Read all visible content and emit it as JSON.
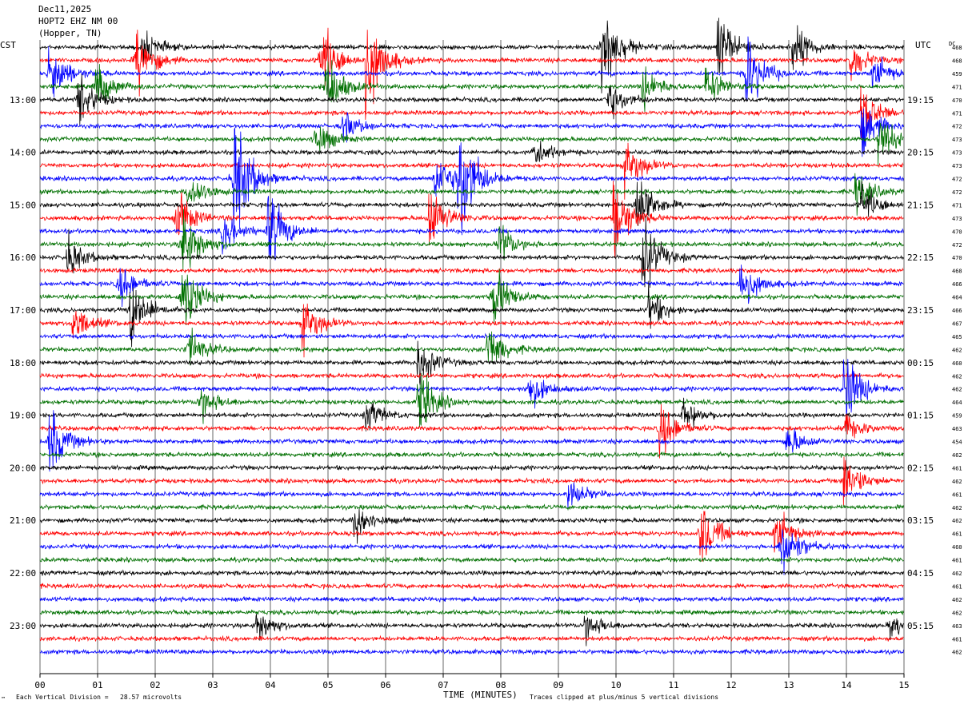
{
  "header": {
    "date": "Dec11,2025",
    "station": "HOPT2 EHZ NM 00",
    "location": "(Hopper, TN)"
  },
  "left_tz": "CST",
  "right_tz": "UTC",
  "dc_label": "DC",
  "footer": {
    "left_mark": "™",
    "scale": "Each Vertical Division =   28.57 microvolts",
    "xlabel": "TIME (MINUTES)",
    "clip_note": "Traces clipped at plus/minus 5 vertical divisions"
  },
  "colors": {
    "trace_cycle": [
      "#000000",
      "#ff0000",
      "#0000ff",
      "#007000"
    ],
    "gridline": "#000000",
    "background": "#ffffff"
  },
  "chart_data": {
    "type": "helicorder",
    "x_unit": "minutes",
    "xlim": [
      0,
      15
    ],
    "x_ticks": [
      "00",
      "01",
      "02",
      "03",
      "04",
      "05",
      "06",
      "07",
      "08",
      "09",
      "10",
      "11",
      "12",
      "13",
      "14",
      "15"
    ],
    "trace_minutes": 15,
    "left_hour_labels": [
      "13:00",
      "14:00",
      "15:00",
      "16:00",
      "17:00",
      "18:00",
      "19:00",
      "20:00",
      "21:00",
      "22:00",
      "23:00"
    ],
    "right_hour_labels": [
      "19:15",
      "20:15",
      "21:15",
      "22:15",
      "23:15",
      "00:15",
      "01:15",
      "02:15",
      "03:15",
      "04:15",
      "05:15"
    ],
    "dc_offsets": [
      468,
      468,
      459,
      471,
      470,
      471,
      472,
      473,
      473,
      473,
      472,
      472,
      471,
      473,
      470,
      472,
      470,
      468,
      466,
      464,
      466,
      467,
      465,
      462,
      460,
      462,
      462,
      464,
      459,
      463,
      454,
      462,
      461,
      462,
      461,
      462,
      462,
      461,
      460,
      461,
      462,
      461,
      462,
      462,
      463,
      461,
      462
    ],
    "events": [
      {
        "trace": 0,
        "minute": 1.8,
        "amp": 1.2
      },
      {
        "trace": 0,
        "minute": 9.8,
        "amp": 3.5
      },
      {
        "trace": 0,
        "minute": 11.8,
        "amp": 2.5
      },
      {
        "trace": 0,
        "minute": 13.1,
        "amp": 2.0
      },
      {
        "trace": 1,
        "minute": 1.7,
        "amp": 2.5
      },
      {
        "trace": 1,
        "minute": 4.9,
        "amp": 3.0
      },
      {
        "trace": 1,
        "minute": 5.7,
        "amp": 4.0
      },
      {
        "trace": 1,
        "minute": 14.1,
        "amp": 1.5
      },
      {
        "trace": 2,
        "minute": 0.2,
        "amp": 2.5
      },
      {
        "trace": 2,
        "minute": 12.3,
        "amp": 3.0
      },
      {
        "trace": 2,
        "minute": 14.5,
        "amp": 1.5
      },
      {
        "trace": 3,
        "minute": 1.0,
        "amp": 1.8
      },
      {
        "trace": 3,
        "minute": 5.0,
        "amp": 2.5
      },
      {
        "trace": 3,
        "minute": 10.5,
        "amp": 1.5
      },
      {
        "trace": 3,
        "minute": 11.6,
        "amp": 1.5
      },
      {
        "trace": 4,
        "minute": 0.7,
        "amp": 2.0
      },
      {
        "trace": 4,
        "minute": 9.9,
        "amp": 1.5
      },
      {
        "trace": 5,
        "minute": 14.3,
        "amp": 2.0
      },
      {
        "trace": 6,
        "minute": 5.3,
        "amp": 1.2
      },
      {
        "trace": 6,
        "minute": 14.3,
        "amp": 2.0
      },
      {
        "trace": 7,
        "minute": 4.8,
        "amp": 1.5
      },
      {
        "trace": 7,
        "minute": 14.6,
        "amp": 2.0
      },
      {
        "trace": 8,
        "minute": 8.6,
        "amp": 1.2
      },
      {
        "trace": 9,
        "minute": 10.2,
        "amp": 2.0
      },
      {
        "trace": 10,
        "minute": 3.4,
        "amp": 5.0
      },
      {
        "trace": 10,
        "minute": 7.3,
        "amp": 5.0
      },
      {
        "trace": 10,
        "minute": 6.9,
        "amp": 2.0
      },
      {
        "trace": 11,
        "minute": 2.6,
        "amp": 1.5
      },
      {
        "trace": 11,
        "minute": 14.2,
        "amp": 1.5
      },
      {
        "trace": 12,
        "minute": 10.4,
        "amp": 2.5
      },
      {
        "trace": 12,
        "minute": 14.3,
        "amp": 1.5
      },
      {
        "trace": 13,
        "minute": 2.4,
        "amp": 2.0
      },
      {
        "trace": 13,
        "minute": 6.8,
        "amp": 2.5
      },
      {
        "trace": 13,
        "minute": 10.0,
        "amp": 3.0
      },
      {
        "trace": 14,
        "minute": 4.0,
        "amp": 3.0
      },
      {
        "trace": 14,
        "minute": 3.2,
        "amp": 1.5
      },
      {
        "trace": 15,
        "minute": 2.5,
        "amp": 3.0
      },
      {
        "trace": 15,
        "minute": 8.0,
        "amp": 1.5
      },
      {
        "trace": 16,
        "minute": 0.5,
        "amp": 1.5
      },
      {
        "trace": 16,
        "minute": 10.5,
        "amp": 3.0
      },
      {
        "trace": 18,
        "minute": 12.2,
        "amp": 2.0
      },
      {
        "trace": 18,
        "minute": 1.4,
        "amp": 1.5
      },
      {
        "trace": 19,
        "minute": 2.5,
        "amp": 3.0
      },
      {
        "trace": 19,
        "minute": 7.9,
        "amp": 2.5
      },
      {
        "trace": 20,
        "minute": 1.6,
        "amp": 2.5
      },
      {
        "trace": 20,
        "minute": 10.6,
        "amp": 1.5
      },
      {
        "trace": 21,
        "minute": 4.6,
        "amp": 2.0
      },
      {
        "trace": 21,
        "minute": 0.6,
        "amp": 1.5
      },
      {
        "trace": 23,
        "minute": 7.8,
        "amp": 2.0
      },
      {
        "trace": 23,
        "minute": 2.6,
        "amp": 1.5
      },
      {
        "trace": 24,
        "minute": 6.6,
        "amp": 1.8
      },
      {
        "trace": 26,
        "minute": 14.0,
        "amp": 3.0
      },
      {
        "trace": 26,
        "minute": 8.5,
        "amp": 1.5
      },
      {
        "trace": 27,
        "minute": 6.6,
        "amp": 2.5
      },
      {
        "trace": 27,
        "minute": 2.8,
        "amp": 1.5
      },
      {
        "trace": 28,
        "minute": 5.7,
        "amp": 1.2
      },
      {
        "trace": 28,
        "minute": 11.2,
        "amp": 1.2
      },
      {
        "trace": 29,
        "minute": 10.8,
        "amp": 2.0
      },
      {
        "trace": 29,
        "minute": 14.0,
        "amp": 1.2
      },
      {
        "trace": 30,
        "minute": 0.2,
        "amp": 2.5
      },
      {
        "trace": 30,
        "minute": 13.0,
        "amp": 1.2
      },
      {
        "trace": 33,
        "minute": 14.0,
        "amp": 2.0
      },
      {
        "trace": 34,
        "minute": 9.2,
        "amp": 1.2
      },
      {
        "trace": 36,
        "minute": 5.5,
        "amp": 1.5
      },
      {
        "trace": 37,
        "minute": 11.5,
        "amp": 2.5
      },
      {
        "trace": 37,
        "minute": 12.8,
        "amp": 2.0
      },
      {
        "trace": 38,
        "minute": 12.9,
        "amp": 2.5
      },
      {
        "trace": 44,
        "minute": 3.8,
        "amp": 1.2
      },
      {
        "trace": 44,
        "minute": 9.5,
        "amp": 1.2
      },
      {
        "trace": 44,
        "minute": 14.8,
        "amp": 1.0
      }
    ]
  }
}
